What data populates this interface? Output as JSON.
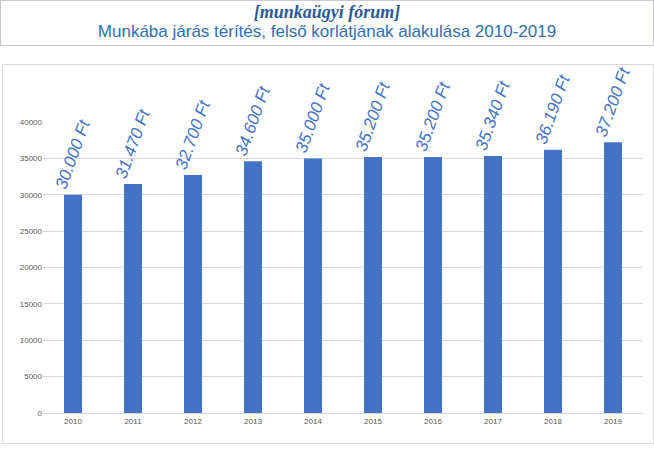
{
  "chart_data": {
    "type": "bar",
    "title": "Munkába járás térítés, felső korlátjának alakulása 2010-2019",
    "annotations": [
      "[munkaügyi fórum]"
    ],
    "categories": [
      "2010",
      "2011",
      "2012",
      "2013",
      "2014",
      "2015",
      "2016",
      "2017",
      "2018",
      "2019"
    ],
    "values": [
      30000,
      31470,
      32700,
      34600,
      35000,
      35200,
      35200,
      35340,
      36190,
      37200
    ],
    "value_labels": [
      "30.000 Ft",
      "31.470 Ft",
      "32.700 Ft",
      "34.600 Ft",
      "35.000 Ft",
      "35.200 Ft",
      "35.200 Ft",
      "35.340 Ft",
      "36.190 Ft",
      "37.200 Ft"
    ],
    "data_labels": true,
    "color": "#4472c4",
    "ylim": [
      0,
      40000
    ],
    "yticks": [
      0,
      5000,
      10000,
      15000,
      20000,
      25000,
      30000,
      35000,
      40000
    ],
    "grid": true
  }
}
